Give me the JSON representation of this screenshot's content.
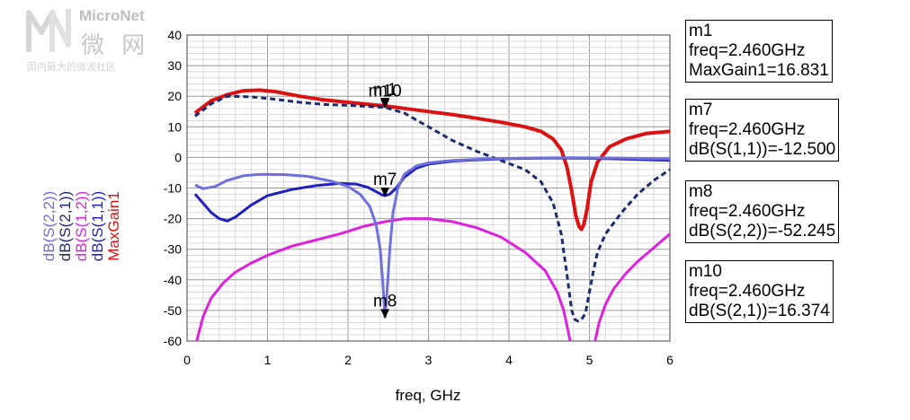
{
  "watermark": {
    "name": "MicroNet",
    "cn": "微 网",
    "tagline": "国内最大的微波社区"
  },
  "chart_data": {
    "type": "line",
    "xlabel": "freq, GHz",
    "xlim": [
      0,
      6
    ],
    "ylim": [
      -60,
      40
    ],
    "x_ticks": [
      0,
      1,
      2,
      3,
      4,
      5,
      6
    ],
    "y_ticks": [
      40,
      30,
      20,
      10,
      0,
      -10,
      -20,
      -30,
      -40,
      -50,
      -60
    ],
    "grid": "on",
    "legend_position": "left, rotated vertical",
    "series": [
      {
        "name": "MaxGain1",
        "color": "#dd1111",
        "style": "solid",
        "x": [
          0.1,
          0.3,
          0.5,
          0.7,
          0.9,
          1.1,
          1.4,
          1.7,
          2.0,
          2.3,
          2.46,
          2.7,
          3.0,
          3.3,
          3.6,
          3.9,
          4.2,
          4.4,
          4.55,
          4.65,
          4.72,
          4.78,
          4.83,
          4.87,
          4.9,
          4.93,
          4.97,
          5.02,
          5.1,
          5.25,
          5.45,
          5.7,
          6.0
        ],
        "y": [
          14.5,
          18.5,
          20.5,
          21.8,
          22.0,
          21.5,
          20.0,
          18.8,
          18.0,
          17.2,
          16.83,
          16.0,
          15.0,
          14.0,
          12.8,
          11.5,
          10.0,
          8.5,
          6.0,
          2.5,
          -3.0,
          -11.0,
          -19.0,
          -22.5,
          -23.5,
          -22.0,
          -17.0,
          -8.0,
          -1.5,
          3.5,
          6.0,
          7.8,
          8.5
        ]
      },
      {
        "name": "dB(S(1,1))",
        "color": "#1f1fbf",
        "style": "solid",
        "x": [
          0.1,
          0.2,
          0.3,
          0.4,
          0.5,
          0.6,
          0.8,
          1.0,
          1.3,
          1.6,
          1.9,
          2.1,
          2.25,
          2.35,
          2.42,
          2.46,
          2.52,
          2.6,
          2.7,
          2.85,
          3.0,
          3.3,
          3.6,
          4.0,
          4.5,
          5.0,
          5.5,
          6.0
        ],
        "y": [
          -12.0,
          -15.0,
          -18.0,
          -20.0,
          -20.8,
          -19.5,
          -15.5,
          -12.5,
          -10.5,
          -9.2,
          -8.5,
          -8.7,
          -9.8,
          -11.2,
          -12.2,
          -12.5,
          -12.0,
          -10.0,
          -6.5,
          -3.5,
          -2.2,
          -1.2,
          -0.8,
          -0.4,
          -0.2,
          -0.3,
          -0.6,
          -1.0
        ]
      },
      {
        "name": "dB(S(1,2))",
        "color": "#dd22dd",
        "style": "solid",
        "x": [
          0.12,
          0.2,
          0.3,
          0.45,
          0.6,
          0.8,
          1.0,
          1.3,
          1.6,
          1.9,
          2.2,
          2.46,
          2.7,
          3.0,
          3.3,
          3.6,
          3.9,
          4.2,
          4.45,
          4.6,
          4.68,
          4.73,
          4.76
        ],
        "y": [
          -60.0,
          -52.0,
          -46.0,
          -41.0,
          -37.5,
          -34.5,
          -32.0,
          -29.0,
          -27.0,
          -25.0,
          -22.5,
          -21.0,
          -20.0,
          -20.0,
          -21.0,
          -23.0,
          -26.0,
          -31.0,
          -37.0,
          -44.0,
          -50.0,
          -56.0,
          -60.0
        ],
        "x2": [
          5.07,
          5.12,
          5.2,
          5.3,
          5.45,
          5.6,
          5.8,
          6.0
        ],
        "y2": [
          -60.0,
          -54.0,
          -48.0,
          -43.0,
          -38.0,
          -34.0,
          -29.5,
          -25.0
        ]
      },
      {
        "name": "dB(S(2,1))",
        "color": "#1a2a6c",
        "style": "dashed",
        "x": [
          0.1,
          0.3,
          0.5,
          0.8,
          1.1,
          1.4,
          1.7,
          2.0,
          2.3,
          2.46,
          2.7,
          3.0,
          3.3,
          3.6,
          3.9,
          4.2,
          4.4,
          4.55,
          4.65,
          4.72,
          4.78,
          4.82,
          4.86,
          4.9,
          4.95,
          5.0,
          5.05,
          5.1,
          5.2,
          5.4,
          5.6,
          5.8,
          6.0
        ],
        "y": [
          13.5,
          17.5,
          20.0,
          19.8,
          19.0,
          18.0,
          17.3,
          17.0,
          16.6,
          16.37,
          14.5,
          10.0,
          5.5,
          2.0,
          -1.0,
          -4.0,
          -8.0,
          -15.0,
          -25.0,
          -38.0,
          -50.0,
          -53.0,
          -53.5,
          -53.0,
          -51.0,
          -44.0,
          -37.0,
          -31.0,
          -25.0,
          -18.0,
          -12.0,
          -7.5,
          -4.0
        ]
      },
      {
        "name": "dB(S(2,2))",
        "color": "#6f6fde",
        "style": "solid",
        "x": [
          0.1,
          0.2,
          0.35,
          0.5,
          0.7,
          0.9,
          1.2,
          1.5,
          1.8,
          2.0,
          2.15,
          2.27,
          2.35,
          2.4,
          2.43,
          2.46,
          2.49,
          2.52,
          2.56,
          2.62,
          2.7,
          2.85,
          3.0,
          3.3,
          3.7,
          4.2,
          4.8,
          5.4,
          6.0
        ],
        "y": [
          -9.0,
          -10.2,
          -9.5,
          -7.5,
          -6.0,
          -5.5,
          -5.6,
          -6.2,
          -7.8,
          -9.5,
          -12.0,
          -16.0,
          -22.0,
          -30.0,
          -40.0,
          -52.2,
          -42.0,
          -30.0,
          -18.0,
          -10.0,
          -5.5,
          -2.8,
          -1.8,
          -1.0,
          -0.5,
          -0.2,
          -0.1,
          -0.2,
          -0.5
        ]
      }
    ],
    "markers": [
      {
        "id": "m1",
        "label": "m1",
        "series": "MaxGain1",
        "x": 2.46,
        "y": 16.831,
        "label_pos": "above"
      },
      {
        "id": "m10",
        "label": "m10",
        "series": "dB(S(2,1))",
        "x": 2.46,
        "y": 16.374,
        "label_pos": "above"
      },
      {
        "id": "m7",
        "label": "m7",
        "series": "dB(S(1,1))",
        "x": 2.46,
        "y": -12.5,
        "label_pos": "above"
      },
      {
        "id": "m8",
        "label": "m8",
        "series": "dB(S(2,2))",
        "x": 2.46,
        "y": -52.245,
        "label_pos": "above"
      }
    ],
    "marker_readouts": [
      {
        "line1": "m1",
        "line2": "freq=2.460GHz",
        "line3": "MaxGain1=16.831"
      },
      {
        "line1": "m7",
        "line2": "freq=2.460GHz",
        "line3": "dB(S(1,1))=-12.500"
      },
      {
        "line1": "m8",
        "line2": "freq=2.460GHz",
        "line3": "dB(S(2,2))=-52.245"
      },
      {
        "line1": "m10",
        "line2": "freq=2.460GHz",
        "line3": "dB(S(2,1))=16.374"
      }
    ]
  }
}
